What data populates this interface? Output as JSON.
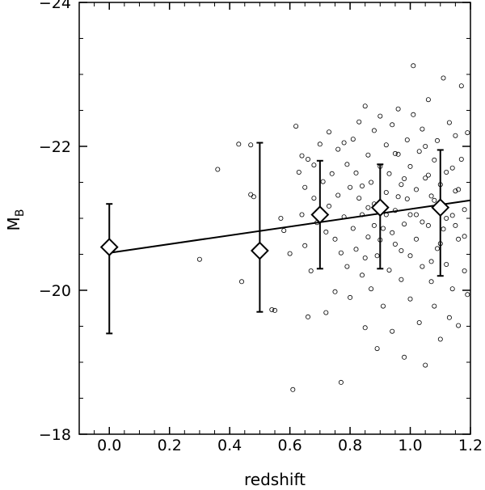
{
  "chart_data": {
    "type": "scatter",
    "xlabel": "redshift",
    "ylabel": "M",
    "ylabel_sub": "B",
    "xlim": [
      -0.1,
      1.2
    ],
    "ylim": [
      -18,
      -24
    ],
    "xticks": [
      0.0,
      0.2,
      0.4,
      0.6,
      0.8,
      1.0,
      1.2
    ],
    "xtick_labels": [
      "0.0",
      "0.2",
      "0.4",
      "0.6",
      "0.8",
      "1.0",
      "1.2"
    ],
    "yticks": [
      -24,
      -22,
      -20,
      -18
    ],
    "ytick_labels": [
      "−24",
      "−22",
      "−20",
      "−18"
    ],
    "binned_points": [
      {
        "x": 0.0,
        "y": -20.6,
        "y_low": -19.4,
        "y_high": -21.2
      },
      {
        "x": 0.5,
        "y": -20.55,
        "y_low": -19.7,
        "y_high": -22.05
      },
      {
        "x": 0.7,
        "y": -21.05,
        "y_low": -20.3,
        "y_high": -21.8
      },
      {
        "x": 0.9,
        "y": -21.15,
        "y_low": -20.3,
        "y_high": -21.75
      },
      {
        "x": 1.1,
        "y": -21.15,
        "y_low": -20.2,
        "y_high": -21.95
      }
    ],
    "fit_line": {
      "x": [
        0.0,
        1.2
      ],
      "y": [
        -20.52,
        -21.25
      ]
    },
    "scatter_points": [
      [
        0.3,
        -20.43
      ],
      [
        0.36,
        -21.68
      ],
      [
        0.43,
        -22.03
      ],
      [
        0.44,
        -20.12
      ],
      [
        0.47,
        -21.33
      ],
      [
        0.48,
        -21.3
      ],
      [
        0.47,
        -22.02
      ],
      [
        0.54,
        -19.73
      ],
      [
        0.55,
        -19.72
      ],
      [
        0.57,
        -21.0
      ],
      [
        0.58,
        -20.83
      ],
      [
        0.6,
        -20.51
      ],
      [
        0.61,
        -18.62
      ],
      [
        0.62,
        -22.28
      ],
      [
        0.63,
        -21.64
      ],
      [
        0.64,
        -21.87
      ],
      [
        0.64,
        -21.05
      ],
      [
        0.65,
        -21.43
      ],
      [
        0.65,
        -20.62
      ],
      [
        0.66,
        -21.82
      ],
      [
        0.66,
        -19.63
      ],
      [
        0.67,
        -20.27
      ],
      [
        0.68,
        -21.74
      ],
      [
        0.68,
        -21.28
      ],
      [
        0.69,
        -20.94
      ],
      [
        0.7,
        -22.03
      ],
      [
        0.71,
        -21.51
      ],
      [
        0.72,
        -20.81
      ],
      [
        0.72,
        -19.69
      ],
      [
        0.73,
        -22.2
      ],
      [
        0.73,
        -21.17
      ],
      [
        0.74,
        -21.62
      ],
      [
        0.75,
        -20.71
      ],
      [
        0.75,
        -19.98
      ],
      [
        0.76,
        -21.96
      ],
      [
        0.76,
        -21.32
      ],
      [
        0.77,
        -20.52
      ],
      [
        0.77,
        -18.72
      ],
      [
        0.78,
        -22.05
      ],
      [
        0.78,
        -21.02
      ],
      [
        0.79,
        -21.75
      ],
      [
        0.79,
        -20.33
      ],
      [
        0.8,
        -19.9
      ],
      [
        0.8,
        -21.43
      ],
      [
        0.81,
        -22.1
      ],
      [
        0.81,
        -20.86
      ],
      [
        0.82,
        -21.63
      ],
      [
        0.82,
        -20.57
      ],
      [
        0.83,
        -21.28
      ],
      [
        0.83,
        -22.34
      ],
      [
        0.84,
        -20.21
      ],
      [
        0.84,
        -21.05
      ],
      [
        0.85,
        -22.56
      ],
      [
        0.85,
        -19.48
      ],
      [
        0.86,
        -21.88
      ],
      [
        0.86,
        -20.74
      ],
      [
        0.87,
        -21.5
      ],
      [
        0.87,
        -20.02
      ],
      [
        0.88,
        -22.22
      ],
      [
        0.88,
        -21.2
      ],
      [
        0.89,
        -19.19
      ],
      [
        0.89,
        -20.48
      ],
      [
        0.9,
        -21.72
      ],
      [
        0.9,
        -22.42
      ],
      [
        0.91,
        -20.86
      ],
      [
        0.91,
        -19.78
      ],
      [
        0.92,
        -21.36
      ],
      [
        0.92,
        -22.02
      ],
      [
        0.93,
        -20.28
      ],
      [
        0.93,
        -21.62
      ],
      [
        0.94,
        -22.3
      ],
      [
        0.94,
        -19.43
      ],
      [
        0.95,
        -21.11
      ],
      [
        0.95,
        -20.64
      ],
      [
        0.96,
        -21.89
      ],
      [
        0.96,
        -22.52
      ],
      [
        0.97,
        -20.15
      ],
      [
        0.97,
        -21.47
      ],
      [
        0.98,
        -19.07
      ],
      [
        0.98,
        -20.92
      ],
      [
        0.99,
        -22.09
      ],
      [
        0.99,
        -21.27
      ],
      [
        1.0,
        -20.48
      ],
      [
        1.0,
        -21.72
      ],
      [
        1.0,
        -19.88
      ],
      [
        1.01,
        -23.12
      ],
      [
        1.01,
        -22.44
      ],
      [
        1.02,
        -21.05
      ],
      [
        1.02,
        -20.71
      ],
      [
        1.03,
        -21.93
      ],
      [
        1.03,
        -19.55
      ],
      [
        1.04,
        -22.24
      ],
      [
        1.04,
        -20.33
      ],
      [
        1.05,
        -21.56
      ],
      [
        1.05,
        -18.96
      ],
      [
        1.06,
        -20.9
      ],
      [
        1.06,
        -22.65
      ],
      [
        1.07,
        -21.31
      ],
      [
        1.07,
        -20.12
      ],
      [
        1.08,
        -21.81
      ],
      [
        1.08,
        -19.78
      ],
      [
        1.09,
        -22.08
      ],
      [
        1.09,
        -20.58
      ],
      [
        1.1,
        -21.47
      ],
      [
        1.1,
        -19.32
      ],
      [
        1.11,
        -22.95
      ],
      [
        1.11,
        -20.85
      ],
      [
        1.12,
        -21.64
      ],
      [
        1.12,
        -20.36
      ],
      [
        1.13,
        -22.33
      ],
      [
        1.13,
        -19.62
      ],
      [
        1.14,
        -21.04
      ],
      [
        1.14,
        -20.02
      ],
      [
        1.15,
        -22.15
      ],
      [
        1.15,
        -21.38
      ],
      [
        1.16,
        -20.71
      ],
      [
        1.16,
        -19.51
      ],
      [
        1.17,
        -22.84
      ],
      [
        1.17,
        -21.82
      ],
      [
        1.18,
        -20.27
      ],
      [
        1.18,
        -21.12
      ],
      [
        1.19,
        -22.19
      ],
      [
        1.19,
        -19.94
      ],
      [
        1.2,
        -21.56
      ],
      [
        1.2,
        -20.46
      ],
      [
        0.84,
        -21.45
      ],
      [
        0.86,
        -21.15
      ],
      [
        0.88,
        -20.9
      ],
      [
        0.92,
        -21.05
      ],
      [
        0.94,
        -20.8
      ],
      [
        0.96,
        -21.3
      ],
      [
        0.98,
        -21.55
      ],
      [
        1.02,
        -21.4
      ],
      [
        1.04,
        -20.95
      ],
      [
        1.06,
        -21.6
      ],
      [
        1.08,
        -21.25
      ],
      [
        1.12,
        -21.0
      ],
      [
        1.14,
        -21.7
      ],
      [
        1.16,
        -21.4
      ],
      [
        1.18,
        -20.75
      ],
      [
        0.9,
        -20.7
      ],
      [
        1.0,
        -21.05
      ],
      [
        1.1,
        -20.65
      ],
      [
        0.95,
        -21.9
      ],
      [
        1.05,
        -22.0
      ],
      [
        1.15,
        -20.9
      ],
      [
        0.85,
        -20.45
      ],
      [
        0.97,
        -20.55
      ],
      [
        1.07,
        -20.4
      ]
    ]
  }
}
